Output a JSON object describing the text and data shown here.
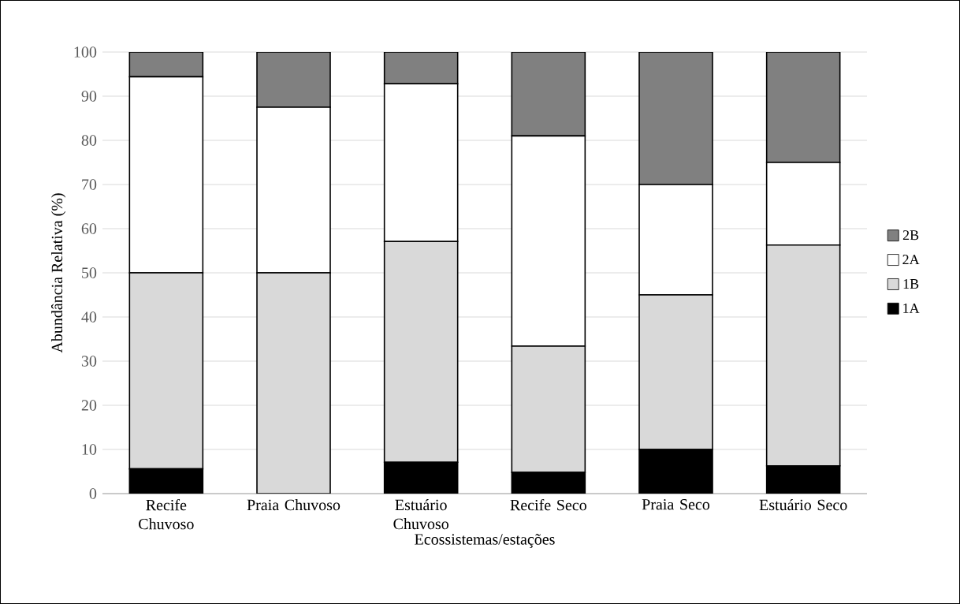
{
  "chart_data": {
    "type": "bar",
    "stacked": true,
    "categories": [
      "Recife Chuvoso",
      "Praia Chuvoso",
      "Estuário Chuvoso",
      "Recife Seco",
      "Praia Seco",
      "Estuário Seco"
    ],
    "series": [
      {
        "name": "1A",
        "color": "#000000",
        "values": [
          5.6,
          0,
          7.1,
          4.8,
          10,
          6.3
        ]
      },
      {
        "name": "1B",
        "color": "#d9d9d9",
        "values": [
          44.4,
          50,
          50,
          28.6,
          35,
          50
        ]
      },
      {
        "name": "2A",
        "color": "#ffffff",
        "values": [
          44.4,
          37.5,
          35.7,
          47.6,
          25,
          18.7
        ]
      },
      {
        "name": "2B",
        "color": "#808080",
        "values": [
          5.6,
          12.5,
          7.2,
          19,
          30,
          25
        ]
      }
    ],
    "xlabel": "Ecossistemas/estações",
    "ylabel": "Abundância Relativa (%)",
    "ylim": [
      0,
      100
    ],
    "yticks": [
      0,
      10,
      20,
      30,
      40,
      50,
      60,
      70,
      80,
      90,
      100
    ],
    "grid": "y",
    "legend": "right"
  }
}
